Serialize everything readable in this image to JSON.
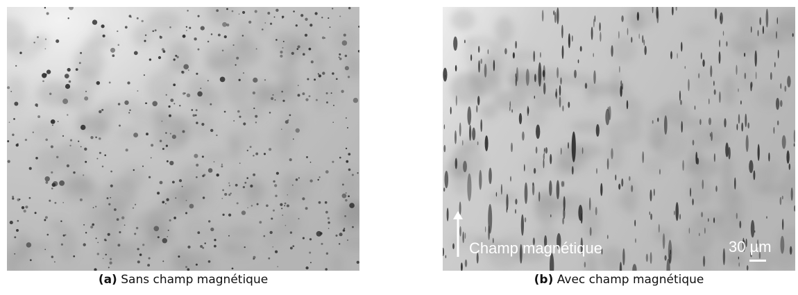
{
  "figure": {
    "panel_a": {
      "tag": "(a)",
      "caption": "Sans champ magnétique"
    },
    "panel_b": {
      "tag": "(b)",
      "caption": "Avec champ magnétique",
      "field_label": "Champ magnétique",
      "scale_label": "30 µm"
    }
  },
  "colors": {
    "background_light": "#e6e6e6",
    "background_dark": "#a9a9a9",
    "particle": "#2f2f2f",
    "annotation": "#ffffff"
  }
}
